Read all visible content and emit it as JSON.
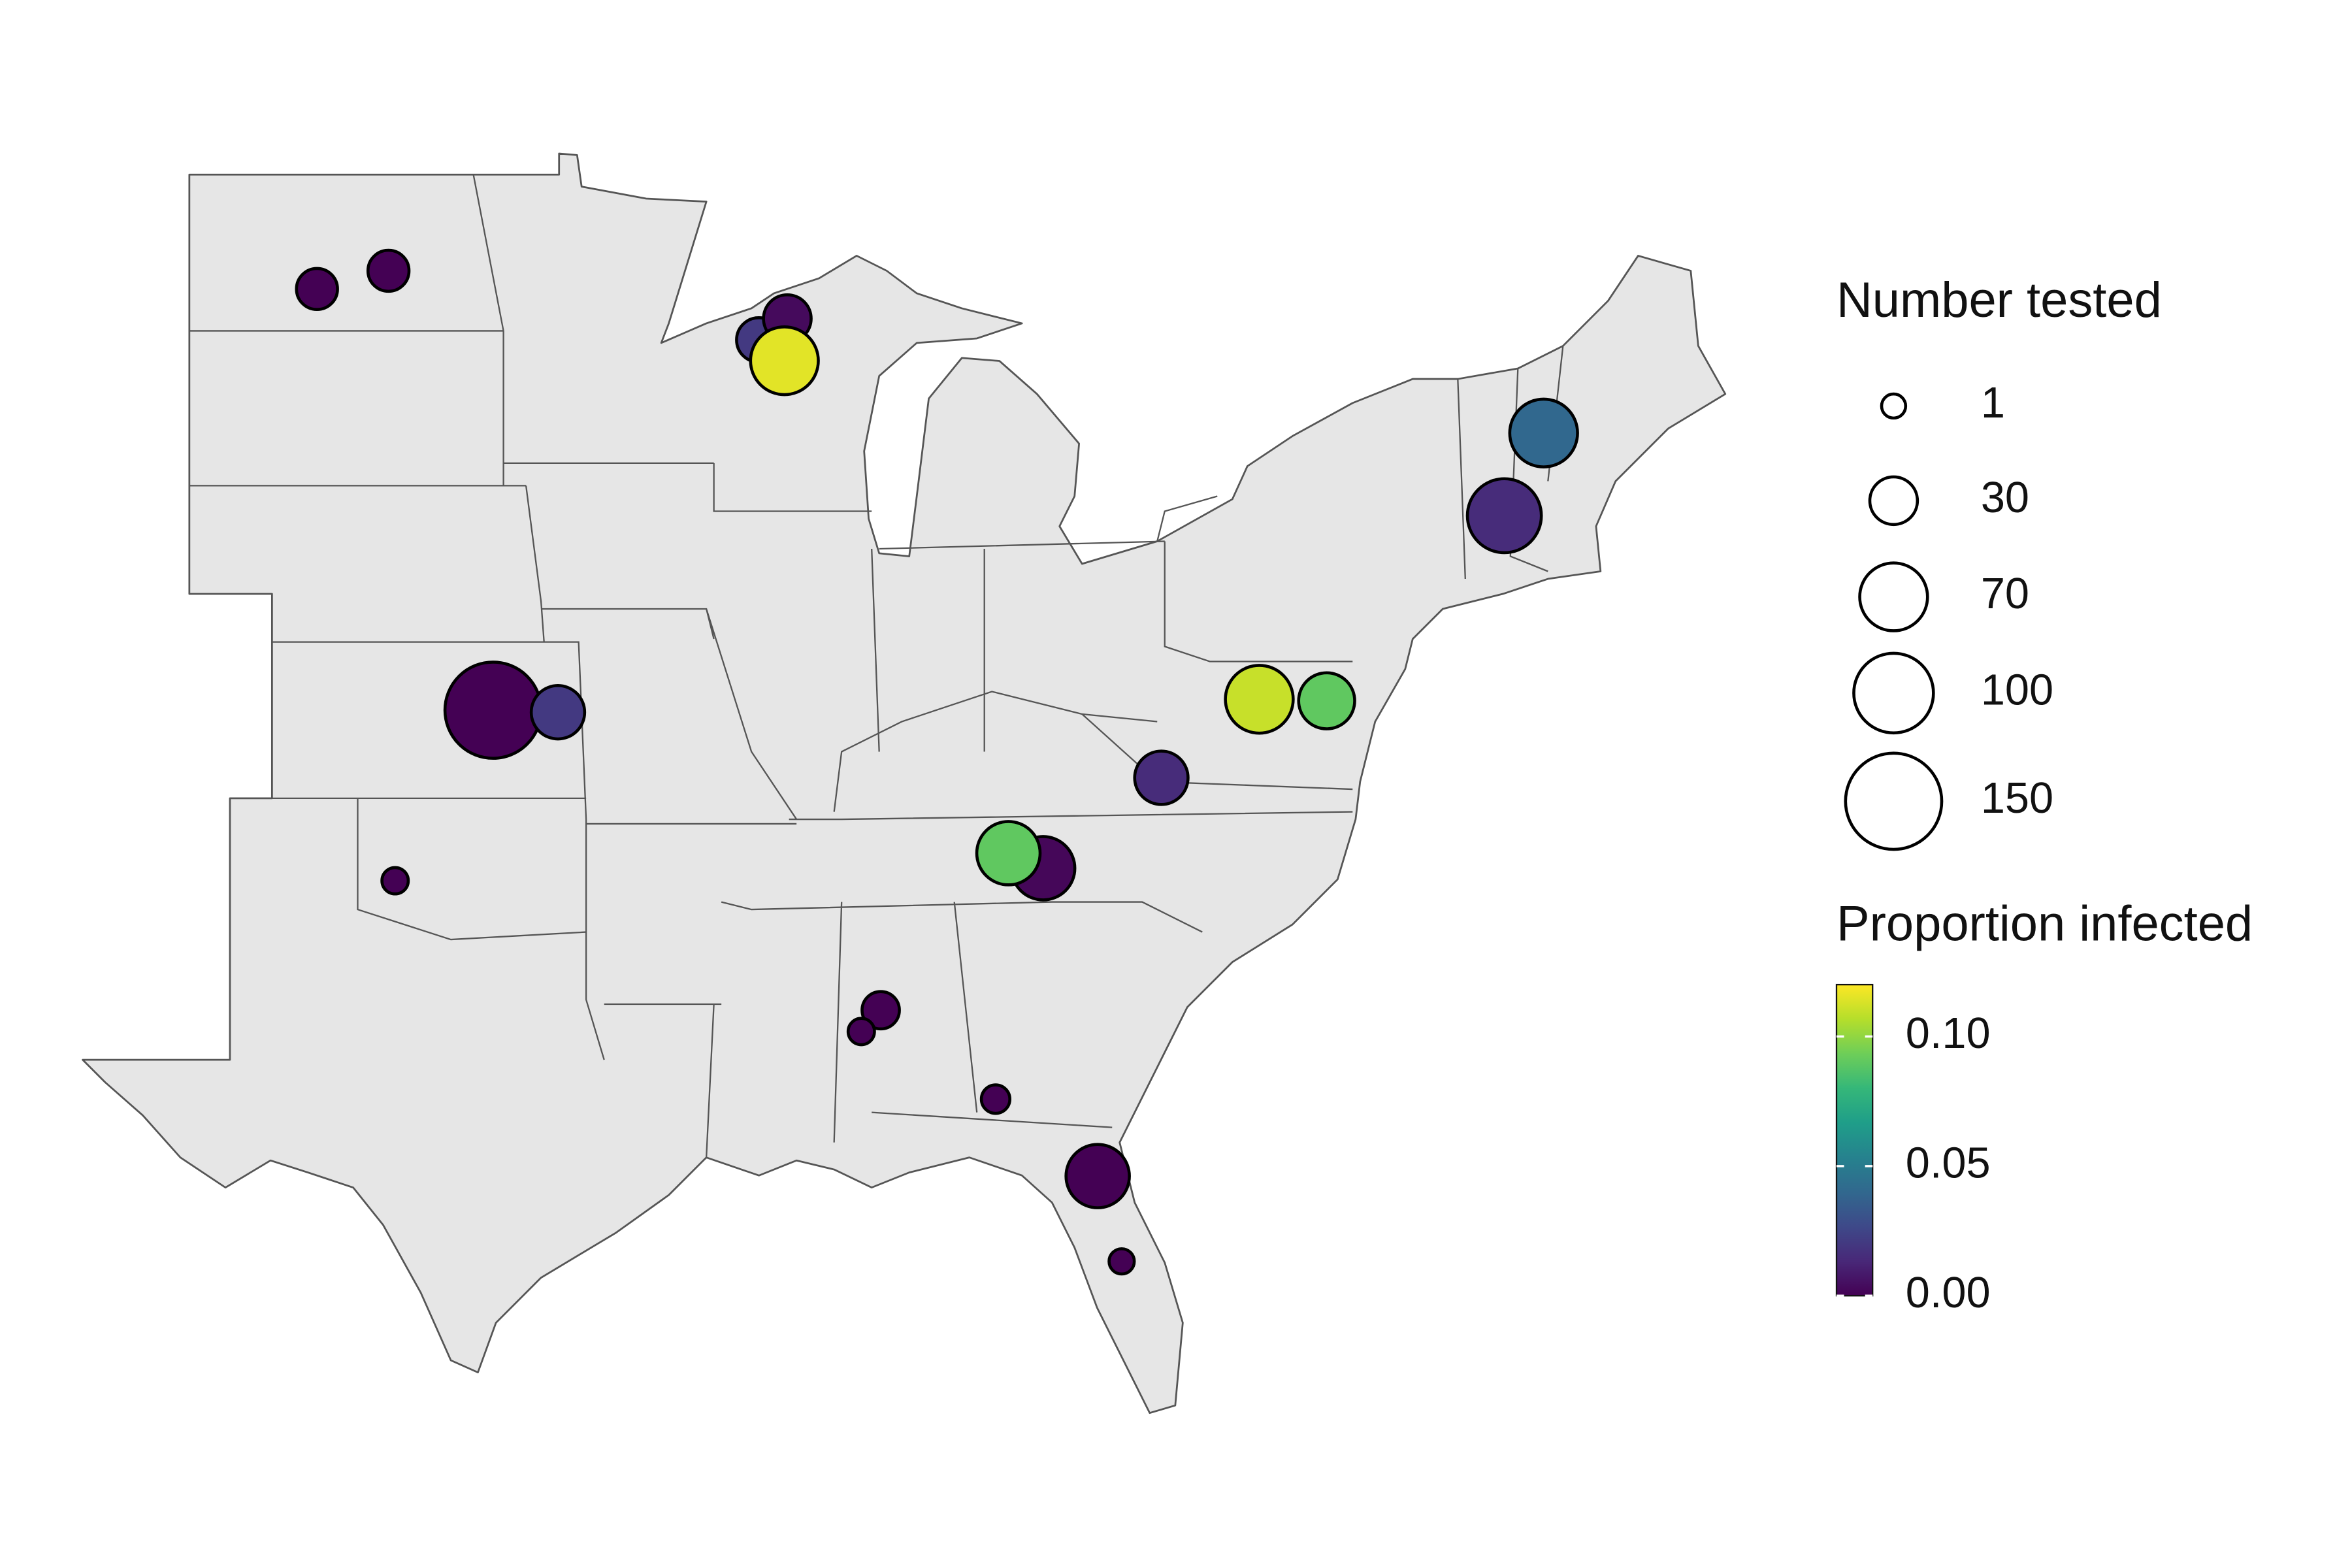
{
  "map_data": {
    "type": "bubble-map",
    "size_legend": {
      "title": "Number tested",
      "breaks": [
        1,
        30,
        70,
        100,
        150
      ]
    },
    "color_legend": {
      "title": "Proportion infected",
      "lim": [
        0,
        0.12
      ],
      "ticks": [
        {
          "value": 0,
          "label": "0.00"
        },
        {
          "value": 0.05,
          "label": "0.05"
        },
        {
          "value": 0.1,
          "label": "0.10"
        }
      ]
    },
    "points": [
      {
        "lon": -100.93,
        "lat": 46.8,
        "n": 20,
        "p": 0.0
      },
      {
        "lon": -99.2,
        "lat": 47.15,
        "n": 20,
        "p": 0.0
      },
      {
        "lon": -90.24,
        "lat": 45.82,
        "n": 25,
        "p": 0.02
      },
      {
        "lon": -89.55,
        "lat": 46.23,
        "n": 30,
        "p": 0.003
      },
      {
        "lon": -89.62,
        "lat": 45.42,
        "n": 70,
        "p": 0.115
      },
      {
        "lon": -71.25,
        "lat": 44.03,
        "n": 70,
        "p": 0.04
      },
      {
        "lon": -72.2,
        "lat": 42.44,
        "n": 85,
        "p": 0.015
      },
      {
        "lon": -96.67,
        "lat": 38.7,
        "n": 150,
        "p": 0.0
      },
      {
        "lon": -95.1,
        "lat": 38.66,
        "n": 40,
        "p": 0.02
      },
      {
        "lon": -99.04,
        "lat": 35.42,
        "n": 3,
        "p": 0.0
      },
      {
        "lon": -78.13,
        "lat": 38.91,
        "n": 70,
        "p": 0.11
      },
      {
        "lon": -76.5,
        "lat": 38.88,
        "n": 45,
        "p": 0.09
      },
      {
        "lon": -80.5,
        "lat": 37.4,
        "n": 40,
        "p": 0.015
      },
      {
        "lon": -83.36,
        "lat": 35.66,
        "n": 60,
        "p": 0.002
      },
      {
        "lon": -84.2,
        "lat": 35.95,
        "n": 60,
        "p": 0.09
      },
      {
        "lon": -87.29,
        "lat": 32.93,
        "n": 15,
        "p": 0.0
      },
      {
        "lon": -87.76,
        "lat": 32.52,
        "n": 3,
        "p": 0.0
      },
      {
        "lon": -84.51,
        "lat": 31.22,
        "n": 5,
        "p": 0.0
      },
      {
        "lon": -82.04,
        "lat": 29.74,
        "n": 60,
        "p": 0.0
      },
      {
        "lon": -81.46,
        "lat": 28.1,
        "n": 2,
        "p": 0.0
      }
    ]
  }
}
